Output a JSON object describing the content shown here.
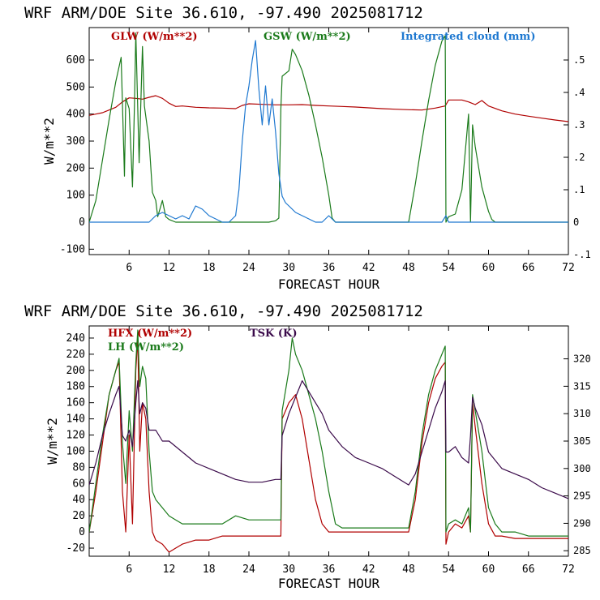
{
  "chart_data": [
    {
      "type": "line",
      "title": "WRF  ARM/DOE Site  36.610, -97.490  2025081712",
      "xlabel": "FORECAST HOUR",
      "ylabel": "W/m**2",
      "xlim": [
        0,
        72
      ],
      "ylim": [
        -120,
        720
      ],
      "y2lim": [
        -0.1,
        0.6
      ],
      "xticks": [
        6,
        12,
        18,
        24,
        30,
        36,
        42,
        48,
        54,
        60,
        66,
        72
      ],
      "yticks": [
        -100,
        0,
        100,
        200,
        300,
        400,
        500,
        600
      ],
      "y2ticks": [
        -0.1,
        0,
        0.1,
        0.2,
        0.3,
        0.4,
        0.5
      ],
      "y2ticklabels": [
        "-.1",
        "0",
        ".1",
        ".2",
        ".3",
        ".4",
        ".5"
      ],
      "series": [
        {
          "name": "GLW (W/m**2)",
          "color": "#b00000",
          "axis": "left",
          "x": [
            0,
            1,
            2,
            3,
            4,
            5,
            6,
            7,
            8,
            9,
            10,
            11,
            12,
            13,
            14,
            16,
            18,
            20,
            22,
            23,
            24,
            26,
            28,
            30,
            32,
            34,
            36,
            38,
            40,
            42,
            44,
            46,
            48,
            50,
            52,
            53.5,
            54,
            56,
            57,
            58,
            59,
            60,
            62,
            64,
            66,
            68,
            70,
            72
          ],
          "values": [
            395,
            400,
            405,
            415,
            425,
            445,
            460,
            458,
            455,
            462,
            468,
            458,
            440,
            428,
            430,
            425,
            423,
            422,
            420,
            432,
            438,
            436,
            434,
            434,
            435,
            432,
            430,
            428,
            426,
            423,
            420,
            418,
            416,
            415,
            422,
            430,
            452,
            452,
            445,
            435,
            450,
            430,
            412,
            400,
            392,
            385,
            378,
            372
          ]
        },
        {
          "name": "GSW (W/m**2)",
          "color": "#1a7a1a",
          "axis": "left",
          "x": [
            0,
            1,
            2,
            3,
            4,
            4.8,
            5,
            5.3,
            5.5,
            6,
            6.5,
            6.8,
            7,
            7.5,
            8,
            8.3,
            9,
            9.5,
            10,
            10.3,
            11,
            11.5,
            12,
            13,
            14,
            15,
            16,
            17,
            18,
            19,
            20,
            21,
            22,
            23,
            24,
            25,
            26,
            27,
            28,
            28.5,
            28.8,
            29,
            30,
            30.5,
            31,
            32,
            33,
            34,
            35,
            36,
            36.5,
            37,
            38,
            39,
            40,
            41,
            42,
            43,
            44,
            45,
            46,
            47,
            48,
            49,
            50,
            51,
            52,
            53,
            53.5,
            53.6,
            54,
            55,
            56,
            57,
            57.3,
            57.6,
            58,
            59,
            60,
            60.5,
            61,
            62,
            63,
            64,
            65,
            66,
            67,
            68,
            69,
            70,
            71,
            72
          ],
          "values": [
            0,
            80,
            230,
            380,
            520,
            610,
            440,
            170,
            460,
            420,
            130,
            430,
            700,
            220,
            650,
            430,
            300,
            110,
            80,
            20,
            80,
            20,
            10,
            0,
            0,
            0,
            0,
            0,
            0,
            0,
            0,
            0,
            0,
            0,
            0,
            0,
            0,
            0,
            5,
            15,
            420,
            540,
            560,
            640,
            620,
            560,
            470,
            360,
            240,
            100,
            15,
            0,
            0,
            0,
            0,
            0,
            0,
            0,
            0,
            0,
            0,
            0,
            0,
            140,
            300,
            450,
            580,
            670,
            690,
            0,
            20,
            30,
            120,
            400,
            0,
            360,
            280,
            130,
            40,
            10,
            0,
            0,
            0,
            0,
            0,
            0,
            0,
            0,
            0,
            0,
            0,
            0
          ]
        },
        {
          "name": "Integrated cloud (mm)",
          "color": "#1e78d0",
          "axis": "right",
          "x": [
            0,
            9,
            10,
            11,
            12,
            13,
            14,
            15,
            16,
            17,
            18,
            19,
            20,
            21,
            22,
            22.5,
            23,
            23.5,
            24,
            24.5,
            25,
            25.5,
            26,
            26.5,
            27,
            27.5,
            28,
            28.5,
            29,
            29.5,
            30,
            31,
            32,
            33,
            34,
            35,
            35.5,
            36,
            36.5,
            37,
            38,
            53,
            53.6,
            54,
            72
          ],
          "values": [
            0,
            0,
            0.02,
            0.03,
            0.02,
            0.01,
            0.02,
            0.01,
            0.05,
            0.04,
            0.02,
            0.01,
            0,
            0,
            0.02,
            0.1,
            0.25,
            0.36,
            0.42,
            0.5,
            0.56,
            0.41,
            0.3,
            0.42,
            0.3,
            0.38,
            0.28,
            0.15,
            0.08,
            0.06,
            0.05,
            0.03,
            0.02,
            0.01,
            0,
            0,
            0.01,
            0.02,
            0.01,
            0,
            0,
            0,
            0.02,
            0,
            0
          ]
        }
      ]
    },
    {
      "type": "line",
      "title": "WRF  ARM/DOE Site  36.610, -97.490  2025081712",
      "xlabel": "FORECAST HOUR",
      "ylabel": "W/m**2",
      "xlim": [
        0,
        72
      ],
      "ylim": [
        -30,
        255
      ],
      "y2lim": [
        284,
        326
      ],
      "xticks": [
        6,
        12,
        18,
        24,
        30,
        36,
        42,
        48,
        54,
        60,
        66,
        72
      ],
      "yticks": [
        -20,
        0,
        20,
        40,
        60,
        80,
        100,
        120,
        140,
        160,
        180,
        200,
        220,
        240
      ],
      "y2ticks": [
        285,
        290,
        295,
        300,
        305,
        310,
        315,
        320
      ],
      "series": [
        {
          "name": "HFX (W/m**2)",
          "color": "#b00000",
          "axis": "left",
          "x": [
            0,
            1,
            2,
            3,
            4,
            4.5,
            5,
            5.5,
            6,
            6.5,
            7,
            7.3,
            7.6,
            8,
            8.5,
            9,
            9.5,
            10,
            11,
            12,
            13,
            14,
            16,
            18,
            20,
            22,
            24,
            26,
            28,
            28.8,
            29,
            30,
            31,
            32,
            33,
            34,
            35,
            36,
            37,
            38,
            40,
            42,
            44,
            46,
            48,
            49,
            50,
            51,
            52,
            53,
            53.5,
            53.6,
            54,
            55,
            56,
            57,
            57.3,
            57.6,
            58,
            59,
            60,
            61,
            62,
            64,
            66,
            68,
            70,
            72
          ],
          "values": [
            0,
            50,
            110,
            170,
            200,
            210,
            50,
            0,
            120,
            10,
            200,
            240,
            100,
            160,
            140,
            50,
            0,
            -10,
            -15,
            -25,
            -20,
            -15,
            -10,
            -10,
            -5,
            -5,
            -5,
            -5,
            -5,
            -5,
            140,
            160,
            170,
            140,
            90,
            40,
            10,
            0,
            0,
            0,
            0,
            0,
            0,
            0,
            0,
            40,
            110,
            160,
            190,
            205,
            210,
            -15,
            0,
            10,
            5,
            20,
            0,
            160,
            130,
            60,
            10,
            -5,
            -5,
            -8,
            -8,
            -8,
            -8,
            -8
          ]
        },
        {
          "name": "LH  (W/m**2)",
          "color": "#1a7a1a",
          "axis": "left",
          "x": [
            0,
            1,
            2,
            3,
            4,
            4.5,
            5,
            5.5,
            6,
            6.5,
            7,
            7.3,
            7.6,
            8,
            8.5,
            9,
            9.5,
            10,
            11,
            12,
            13,
            14,
            16,
            18,
            20,
            22,
            24,
            26,
            28,
            28.8,
            29,
            30,
            30.5,
            31,
            32,
            33,
            34,
            35,
            36,
            37,
            38,
            40,
            42,
            44,
            46,
            48,
            49,
            50,
            51,
            52,
            53,
            53.5,
            53.6,
            54,
            55,
            56,
            57,
            57.3,
            57.6,
            58,
            59,
            60,
            61,
            62,
            64,
            66,
            68,
            70,
            72
          ],
          "values": [
            0,
            60,
            120,
            170,
            200,
            215,
            110,
            60,
            150,
            100,
            210,
            250,
            180,
            205,
            190,
            100,
            50,
            40,
            30,
            20,
            15,
            10,
            10,
            10,
            10,
            20,
            15,
            15,
            15,
            15,
            150,
            200,
            240,
            220,
            200,
            170,
            140,
            100,
            50,
            10,
            5,
            5,
            5,
            5,
            5,
            5,
            50,
            120,
            170,
            200,
            220,
            230,
            0,
            10,
            15,
            10,
            30,
            0,
            170,
            150,
            100,
            30,
            10,
            0,
            0,
            -5,
            -5,
            -5,
            -5
          ]
        },
        {
          "name": "TSK (K)",
          "color": "#3a0a4a",
          "axis": "right",
          "x": [
            0,
            1,
            2,
            3,
            4,
            4.5,
            5,
            5.5,
            6,
            6.5,
            7,
            7.3,
            7.6,
            8,
            8.5,
            9,
            10,
            11,
            12,
            14,
            16,
            18,
            20,
            22,
            24,
            26,
            28,
            28.8,
            29,
            30,
            31,
            32,
            33,
            34,
            35,
            36,
            38,
            40,
            42,
            44,
            46,
            48,
            49,
            50,
            51,
            52,
            53,
            53.5,
            53.6,
            54,
            55,
            56,
            57,
            57.3,
            57.6,
            58,
            59,
            60,
            62,
            64,
            66,
            68,
            70,
            72
          ],
          "values": [
            297,
            301,
            306,
            310,
            313.5,
            315,
            306,
            305,
            307,
            304,
            312,
            316,
            310,
            312,
            311,
            307,
            307,
            305,
            305,
            303,
            301,
            300,
            299,
            298,
            297.5,
            297.5,
            298,
            298,
            306,
            310,
            313,
            316,
            314,
            312,
            310,
            307,
            304,
            302,
            301,
            300,
            298.5,
            297,
            299,
            303,
            307,
            311,
            314,
            316,
            303,
            303,
            304,
            302,
            301,
            306,
            313,
            311,
            308,
            303,
            300,
            299,
            298,
            296.5,
            295.5,
            294.5
          ]
        }
      ]
    }
  ]
}
